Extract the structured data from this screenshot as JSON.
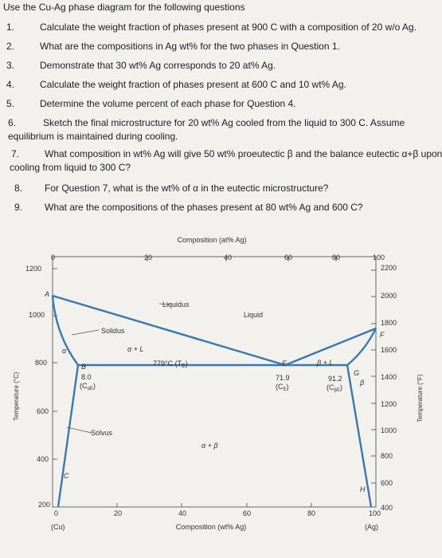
{
  "header": {
    "title": "Use the Cu-Ag phase diagram for the following questions"
  },
  "questions": [
    {
      "num": "1.",
      "text": "Calculate the weight fraction of phases present at 900 C with a composition of 20 w/o Ag."
    },
    {
      "num": "2.",
      "text": "What are the compositions in Ag wt% for the two phases in Question 1."
    },
    {
      "num": "3.",
      "text": "Demonstrate that 30 wt% Ag corresponds to 20 at% Ag."
    },
    {
      "num": "4.",
      "text": "Calculate the weight fraction of phases present at 600 C and 10 wt% Ag."
    },
    {
      "num": "5.",
      "text": "Determine the volume percent of each phase for Question 4."
    },
    {
      "num": "6.",
      "text": "Sketch the final microstructure for 20 wt% Ag cooled from the liquid to 300 C.  Assume",
      "line2": "equilibrium is maintained during cooling."
    },
    {
      "num": "7.",
      "text": "What composition in wt% Ag will give 50 wt% proeutectic β and the balance eutectic α+β upon",
      "line2": "cooling from liquid to 300 C?"
    },
    {
      "num": "8.",
      "text": "For Question 7, what is the wt% of α in the eutectic microstructure?"
    },
    {
      "num": "9.",
      "text": "What are the compositions of the phases present at 80 wt% Ag and 600 C?"
    }
  ],
  "chart_data": {
    "type": "phase-diagram",
    "title": "Composition (at% Ag)",
    "xlabel": "Composition (wt% Ag)",
    "ylabel_left": "Temperature (°C)",
    "ylabel_right": "Temperature (°F)",
    "x_ticks_wt": [
      "0",
      "20",
      "40",
      "60",
      "80",
      "100"
    ],
    "x_ticks_at": [
      "0",
      "20",
      "40",
      "60",
      "80",
      "100"
    ],
    "y_ticks_c": [
      "200",
      "400",
      "600",
      "800",
      "1000",
      "1200"
    ],
    "y_ticks_f": [
      "400",
      "600",
      "800",
      "1000",
      "1200",
      "1400",
      "1600",
      "1800",
      "2000",
      "2200"
    ],
    "left_end": "(Cu)",
    "right_end": "(Ag)",
    "points": {
      "A": "A",
      "B": "B",
      "C": "C",
      "E": "E",
      "F": "F",
      "G": "G",
      "H": "H"
    },
    "labels": {
      "liquidus": "Liquidus",
      "liquid": "Liquid",
      "solidus": "Solidus",
      "solvus": "Solvus",
      "alpha": "α",
      "beta": "β",
      "alpha_l": "α + L",
      "beta_l": "β + L",
      "alpha_beta": "α + β",
      "eutectic_t": "779°C (T",
      "eutectic_t_sub": "E",
      "ca_val": "8.0",
      "ca_label": "(C",
      "ca_sub": "αE",
      "ce_val": "71.9",
      "ce_label": "(C",
      "ce_sub": "E",
      "cb_val": "91.2",
      "cb_label": "(C",
      "cb_sub": "βE"
    },
    "boundaries": {
      "cu_melt_c": 1085,
      "ag_melt_c": 962,
      "eutectic_c": 779,
      "alpha_max_wt": 8.0,
      "eutectic_wt": 71.9,
      "beta_max_wt": 91.2
    },
    "ylim_c": [
      200,
      1200
    ],
    "xlim_wt": [
      0,
      100
    ]
  }
}
